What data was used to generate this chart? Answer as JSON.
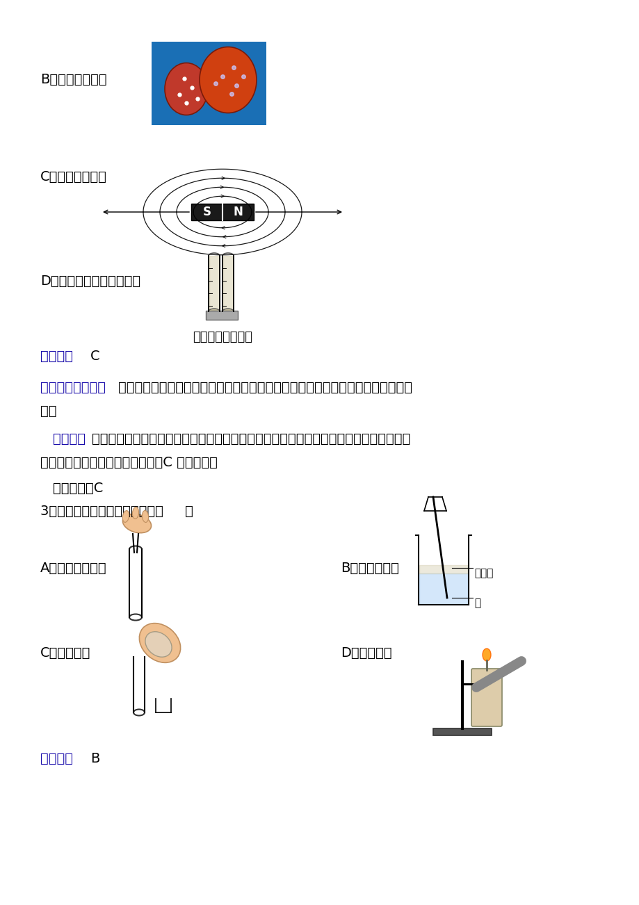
{
  "bg_color": "#ffffff",
  "answer_color": "#1a0dab",
  "label_B": "B．研究宇宙膨胀",
  "label_C": "C．研究磁场实验",
  "label_D": "D．研究分子间有间隔实验",
  "caption_D": "芝麻黄豆混合实验",
  "ans1_bracket": "【答案】",
  "ans1_answer": "C",
  "analysis_bracket": "【解析】【分析】",
  "analysis_main": "模拟实验是在人为控制研究对象的条件下进行观察，模仿实验的某些条件进行的实",
  "analysis_cont": "验。",
  "solution_bracket": "【解答】",
  "solution_main": "米勒实验、研究宇宙膨胀实验、研究分子间有间隔实验都是模拟实验，而研究磁场实验不",
  "solution_cont": "需要模型，因此不属于模拟实验，C 符合题意。",
  "answer_note": "故答案为：C",
  "q3_text": "3．下列实验操作中，正确的是（     ）",
  "label_A2": "A．向试管加固体",
  "label_B2": "B．稀释浓硫酸",
  "label_C2": "C．倾倒液体",
  "label_D2": "D．加热固体",
  "conc_acid": "浓硫酸",
  "water_label": "水",
  "ans2_bracket": "【答案】",
  "ans2_answer": "B"
}
